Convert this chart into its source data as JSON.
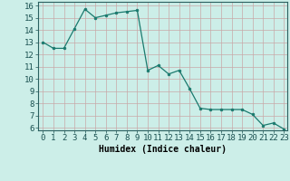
{
  "x": [
    0,
    1,
    2,
    3,
    4,
    5,
    6,
    7,
    8,
    9,
    10,
    11,
    12,
    13,
    14,
    15,
    16,
    17,
    18,
    19,
    20,
    21,
    22,
    23
  ],
  "y": [
    13.0,
    12.5,
    12.5,
    14.1,
    15.7,
    15.0,
    15.2,
    15.4,
    15.5,
    15.6,
    10.7,
    11.1,
    10.4,
    10.7,
    9.2,
    7.6,
    7.5,
    7.5,
    7.5,
    7.5,
    7.1,
    6.2,
    6.4,
    5.9
  ],
  "xlabel": "Humidex (Indice chaleur)",
  "ylim_min": 6,
  "ylim_max": 16,
  "xlim_min": 0,
  "xlim_max": 23,
  "yticks": [
    6,
    7,
    8,
    9,
    10,
    11,
    12,
    13,
    14,
    15,
    16
  ],
  "xticks": [
    0,
    1,
    2,
    3,
    4,
    5,
    6,
    7,
    8,
    9,
    10,
    11,
    12,
    13,
    14,
    15,
    16,
    17,
    18,
    19,
    20,
    21,
    22,
    23
  ],
  "line_color": "#1a7a6e",
  "marker_color": "#1a7a6e",
  "bg_color": "#cceee8",
  "grid_color": "#c8a8a8",
  "xlabel_fontsize": 7,
  "tick_fontsize": 6.5
}
